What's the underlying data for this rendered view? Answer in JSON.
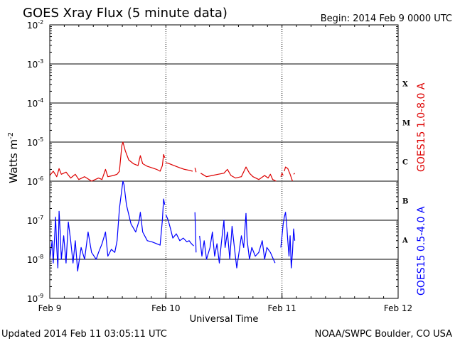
{
  "header": {
    "title": "GOES Xray Flux (5 minute data)",
    "begin": "Begin:  2014 Feb 9 0000 UTC"
  },
  "footer": {
    "updated": "Updated 2014 Feb 11 03:05:11 UTC",
    "source": "NOAA/SWPC Boulder, CO USA"
  },
  "chart_data": {
    "type": "line",
    "x_unit": "days since 2014 Feb 9 0000 UTC",
    "xlim": [
      0,
      3
    ],
    "x_ticks": [
      {
        "x": 0,
        "label": "Feb 9"
      },
      {
        "x": 1,
        "label": "Feb 10"
      },
      {
        "x": 2,
        "label": "Feb 11"
      },
      {
        "x": 3,
        "label": "Feb 12"
      }
    ],
    "xlabel": "Universal Time",
    "ylabel_base": "Watts m",
    "ylabel_exp": "-2",
    "y_scale": "log",
    "ylim": [
      1e-09,
      0.01
    ],
    "y_ticks": [
      {
        "exp": -2,
        "base": "10",
        "sup": "-2"
      },
      {
        "exp": -3,
        "base": "10",
        "sup": "-3"
      },
      {
        "exp": -4,
        "base": "10",
        "sup": "-4"
      },
      {
        "exp": -5,
        "base": "10",
        "sup": "-5"
      },
      {
        "exp": -6,
        "base": "10",
        "sup": "-6"
      },
      {
        "exp": -7,
        "base": "10",
        "sup": "-7"
      },
      {
        "exp": -8,
        "base": "10",
        "sup": "-8"
      },
      {
        "exp": -9,
        "base": "10",
        "sup": "-9"
      }
    ],
    "flare_classes": [
      {
        "label": "X",
        "exp": -3.5
      },
      {
        "label": "M",
        "exp": -4.5
      },
      {
        "label": "C",
        "exp": -5.5
      },
      {
        "label": "B",
        "exp": -6.5
      },
      {
        "label": "A",
        "exp": -7.5
      }
    ],
    "grid": true,
    "series": [
      {
        "name": "GOES15 1.0-8.0 A",
        "color": "#dd0000",
        "segments": [
          [
            [
              0.0,
              1.4e-06
            ],
            [
              0.03,
              1.8e-06
            ],
            [
              0.06,
              1.3e-06
            ],
            [
              0.08,
              2.1e-06
            ],
            [
              0.1,
              1.5e-06
            ],
            [
              0.14,
              1.7e-06
            ],
            [
              0.18,
              1.2e-06
            ],
            [
              0.22,
              1.5e-06
            ],
            [
              0.25,
              1.1e-06
            ],
            [
              0.3,
              1.3e-06
            ],
            [
              0.36,
              1e-06
            ],
            [
              0.42,
              1.2e-06
            ],
            [
              0.45,
              1.1e-06
            ],
            [
              0.48,
              2e-06
            ],
            [
              0.5,
              1.3e-06
            ],
            [
              0.55,
              1.4e-06
            ],
            [
              0.58,
              1.5e-06
            ],
            [
              0.6,
              1.8e-06
            ],
            [
              0.62,
              8e-06
            ],
            [
              0.63,
              1e-05
            ],
            [
              0.65,
              6e-06
            ],
            [
              0.68,
              3.5e-06
            ],
            [
              0.72,
              2.8e-06
            ],
            [
              0.76,
              2.5e-06
            ],
            [
              0.78,
              4.5e-06
            ],
            [
              0.8,
              2.8e-06
            ],
            [
              0.84,
              2.4e-06
            ],
            [
              0.88,
              2.2e-06
            ],
            [
              0.92,
              2e-06
            ],
            [
              0.95,
              1.8e-06
            ],
            [
              0.97,
              2.5e-06
            ],
            [
              0.98,
              4.8e-06
            ],
            [
              0.99,
              4e-06
            ]
          ],
          [
            [
              1.0,
              3e-06
            ],
            [
              1.03,
              2.8e-06
            ],
            [
              1.07,
              2.5e-06
            ],
            [
              1.12,
              2.2e-06
            ],
            [
              1.16,
              2e-06
            ],
            [
              1.2,
              1.9e-06
            ],
            [
              1.23,
              1.8e-06
            ]
          ],
          [
            [
              1.25,
              2.2e-06
            ],
            [
              1.26,
              1.7e-06
            ]
          ],
          [
            [
              1.3,
              1.6e-06
            ],
            [
              1.35,
              1.3e-06
            ],
            [
              1.4,
              1.4e-06
            ],
            [
              1.45,
              1.5e-06
            ],
            [
              1.5,
              1.6e-06
            ],
            [
              1.53,
              2e-06
            ],
            [
              1.56,
              1.4e-06
            ],
            [
              1.6,
              1.2e-06
            ],
            [
              1.65,
              1.3e-06
            ],
            [
              1.69,
              2.3e-06
            ],
            [
              1.72,
              1.6e-06
            ],
            [
              1.75,
              1.3e-06
            ],
            [
              1.8,
              1.1e-06
            ],
            [
              1.85,
              1.4e-06
            ],
            [
              1.88,
              1.2e-06
            ],
            [
              1.9,
              1.5e-06
            ],
            [
              1.92,
              1.1e-06
            ],
            [
              1.95,
              1e-06
            ]
          ],
          [
            [
              1.99,
              1.3e-06
            ],
            [
              2.0,
              1.6e-06
            ],
            [
              2.01,
              1.4e-06
            ]
          ],
          [
            [
              2.02,
              1.8e-06
            ],
            [
              2.03,
              2.3e-06
            ],
            [
              2.05,
              2.1e-06
            ],
            [
              2.07,
              1.5e-06
            ],
            [
              2.09,
              1e-06
            ]
          ],
          [
            [
              2.1,
              1.5e-06
            ],
            [
              2.11,
              1.6e-06
            ]
          ]
        ]
      },
      {
        "name": "GOES15 0.5-4.0 A",
        "color": "#0000ff",
        "segments": [
          [
            [
              0.0,
              1e-08
            ],
            [
              0.02,
              3e-08
            ],
            [
              0.03,
              8e-09
            ],
            [
              0.05,
              1.2e-07
            ],
            [
              0.06,
              2e-08
            ],
            [
              0.07,
              6e-09
            ],
            [
              0.08,
              1.7e-07
            ],
            [
              0.09,
              5e-08
            ],
            [
              0.1,
              1e-08
            ],
            [
              0.12,
              4e-08
            ],
            [
              0.14,
              8e-09
            ],
            [
              0.16,
              9e-08
            ],
            [
              0.18,
              3e-08
            ],
            [
              0.2,
              8e-09
            ],
            [
              0.22,
              3e-08
            ],
            [
              0.24,
              5e-09
            ],
            [
              0.27,
              2e-08
            ],
            [
              0.3,
              1e-08
            ],
            [
              0.33,
              5e-08
            ],
            [
              0.36,
              1.5e-08
            ],
            [
              0.4,
              1e-08
            ],
            [
              0.42,
              1.5e-08
            ],
            [
              0.45,
              2.5e-08
            ],
            [
              0.48,
              5e-08
            ],
            [
              0.5,
              1.2e-08
            ],
            [
              0.53,
              1.8e-08
            ],
            [
              0.56,
              1.5e-08
            ],
            [
              0.58,
              3e-08
            ],
            [
              0.6,
              2e-07
            ],
            [
              0.62,
              6e-07
            ],
            [
              0.63,
              1e-06
            ],
            [
              0.64,
              8e-07
            ],
            [
              0.66,
              2.5e-07
            ],
            [
              0.7,
              8e-08
            ],
            [
              0.74,
              5e-08
            ],
            [
              0.77,
              1e-07
            ],
            [
              0.78,
              1.6e-07
            ],
            [
              0.8,
              5e-08
            ],
            [
              0.84,
              3e-08
            ],
            [
              0.88,
              2.8e-08
            ],
            [
              0.92,
              2.5e-08
            ],
            [
              0.95,
              2.3e-08
            ],
            [
              0.97,
              1e-07
            ],
            [
              0.98,
              3.5e-07
            ],
            [
              0.99,
              2.5e-07
            ]
          ],
          [
            [
              1.0,
              1.4e-07
            ],
            [
              1.02,
              1e-07
            ],
            [
              1.04,
              6e-08
            ],
            [
              1.06,
              3.5e-08
            ],
            [
              1.09,
              4.5e-08
            ],
            [
              1.12,
              3e-08
            ],
            [
              1.15,
              3.5e-08
            ],
            [
              1.18,
              2.8e-08
            ],
            [
              1.2,
              3e-08
            ],
            [
              1.22,
              2.5e-08
            ],
            [
              1.24,
              2.2e-08
            ]
          ],
          [
            [
              1.25,
              1.6e-07
            ],
            [
              1.26,
              1.5e-08
            ]
          ],
          [
            [
              1.29,
              4e-08
            ],
            [
              1.31,
              1.2e-08
            ],
            [
              1.33,
              3e-08
            ],
            [
              1.35,
              1e-08
            ],
            [
              1.38,
              2e-08
            ],
            [
              1.4,
              5e-08
            ],
            [
              1.42,
              1.2e-08
            ],
            [
              1.44,
              2.5e-08
            ],
            [
              1.46,
              8e-09
            ],
            [
              1.48,
              3e-08
            ],
            [
              1.5,
              1e-07
            ],
            [
              1.51,
              2e-08
            ],
            [
              1.53,
              5e-08
            ],
            [
              1.55,
              1e-08
            ],
            [
              1.57,
              7e-08
            ],
            [
              1.59,
              2e-08
            ],
            [
              1.61,
              6e-09
            ],
            [
              1.63,
              1.5e-08
            ],
            [
              1.65,
              4e-08
            ],
            [
              1.67,
              2e-08
            ],
            [
              1.69,
              1.5e-07
            ],
            [
              1.7,
              3e-08
            ],
            [
              1.72,
              1e-08
            ],
            [
              1.74,
              2e-08
            ],
            [
              1.77,
              1.2e-08
            ],
            [
              1.8,
              1.5e-08
            ],
            [
              1.83,
              3e-08
            ],
            [
              1.85,
              1e-08
            ],
            [
              1.87,
              2e-08
            ],
            [
              1.9,
              1.5e-08
            ],
            [
              1.92,
              1.1e-08
            ],
            [
              1.94,
              8e-09
            ]
          ],
          [
            [
              1.99,
              2e-08
            ],
            [
              2.0,
              4e-08
            ],
            [
              2.01,
              8e-08
            ],
            [
              2.02,
              1.2e-07
            ],
            [
              2.03,
              1.6e-07
            ],
            [
              2.04,
              8e-08
            ],
            [
              2.05,
              3e-08
            ],
            [
              2.06,
              1.2e-08
            ],
            [
              2.07,
              4e-08
            ],
            [
              2.08,
              6e-09
            ],
            [
              2.09,
              1.5e-08
            ],
            [
              2.1,
              6e-08
            ],
            [
              2.11,
              3e-08
            ]
          ]
        ]
      }
    ]
  }
}
